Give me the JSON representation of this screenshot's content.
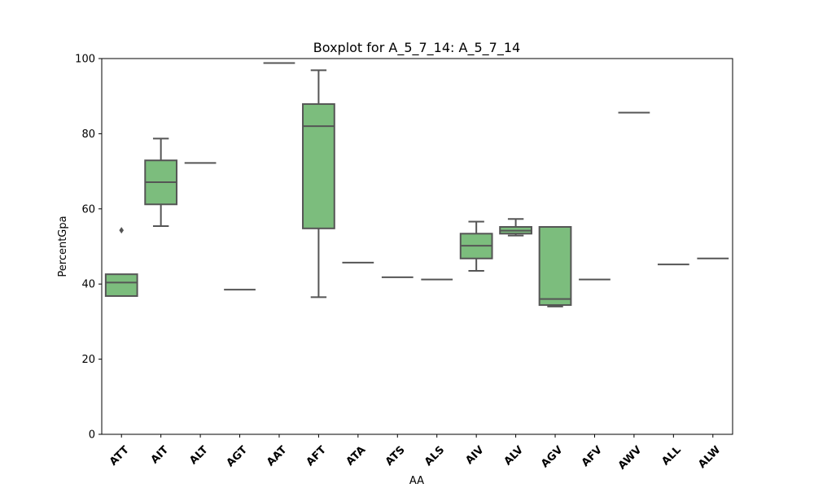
{
  "chart_data": {
    "type": "box",
    "title": "Boxplot for A_5_7_14: A_5_7_14",
    "xlabel": "AA",
    "ylabel": "PercentGpa",
    "ylim": [
      0,
      100
    ],
    "yticks": [
      0,
      20,
      40,
      60,
      80,
      100
    ],
    "grid": false,
    "colors": {
      "box_fill": "#7cbd7d",
      "box_line": "#555555",
      "axis": "#000000"
    },
    "categories": [
      "ATT",
      "AIT",
      "ALT",
      "AGT",
      "AAT",
      "AFT",
      "ATA",
      "ATS",
      "ALS",
      "AIV",
      "ALV",
      "AGV",
      "AFV",
      "AWV",
      "ALL",
      "ALW"
    ],
    "boxes": [
      {
        "category": "ATT",
        "whisker_low": 36.8,
        "q1": 36.8,
        "median": 40.4,
        "q3": 42.6,
        "whisker_high": 42.6,
        "outliers": [
          54.3
        ]
      },
      {
        "category": "AIT",
        "whisker_low": 55.4,
        "q1": 61.2,
        "median": 67.1,
        "q3": 72.9,
        "whisker_high": 78.7,
        "outliers": []
      },
      {
        "category": "ALT",
        "whisker_low": 72.2,
        "q1": 72.2,
        "median": 72.2,
        "q3": 72.2,
        "whisker_high": 72.2,
        "outliers": []
      },
      {
        "category": "AGT",
        "whisker_low": 38.5,
        "q1": 38.5,
        "median": 38.5,
        "q3": 38.5,
        "whisker_high": 38.5,
        "outliers": []
      },
      {
        "category": "AAT",
        "whisker_low": 98.8,
        "q1": 98.8,
        "median": 98.8,
        "q3": 98.8,
        "whisker_high": 98.8,
        "outliers": []
      },
      {
        "category": "AFT",
        "whisker_low": 36.5,
        "q1": 54.8,
        "median": 82.0,
        "q3": 87.9,
        "whisker_high": 96.9,
        "outliers": []
      },
      {
        "category": "ATA",
        "whisker_low": 45.7,
        "q1": 45.7,
        "median": 45.7,
        "q3": 45.7,
        "whisker_high": 45.7,
        "outliers": []
      },
      {
        "category": "ATS",
        "whisker_low": 41.8,
        "q1": 41.8,
        "median": 41.8,
        "q3": 41.8,
        "whisker_high": 41.8,
        "outliers": []
      },
      {
        "category": "ALS",
        "whisker_low": 41.2,
        "q1": 41.2,
        "median": 41.2,
        "q3": 41.2,
        "whisker_high": 41.2,
        "outliers": []
      },
      {
        "category": "AIV",
        "whisker_low": 43.5,
        "q1": 46.8,
        "median": 50.2,
        "q3": 53.4,
        "whisker_high": 56.6,
        "outliers": []
      },
      {
        "category": "ALV",
        "whisker_low": 52.9,
        "q1": 53.4,
        "median": 54.2,
        "q3": 55.2,
        "whisker_high": 57.3,
        "outliers": []
      },
      {
        "category": "AGV",
        "whisker_low": 34.0,
        "q1": 34.4,
        "median": 36.0,
        "q3": 55.2,
        "whisker_high": 55.2,
        "outliers": []
      },
      {
        "category": "AFV",
        "whisker_low": 41.2,
        "q1": 41.2,
        "median": 41.2,
        "q3": 41.2,
        "whisker_high": 41.2,
        "outliers": []
      },
      {
        "category": "AWV",
        "whisker_low": 85.6,
        "q1": 85.6,
        "median": 85.6,
        "q3": 85.6,
        "whisker_high": 85.6,
        "outliers": []
      },
      {
        "category": "ALL",
        "whisker_low": 45.2,
        "q1": 45.2,
        "median": 45.2,
        "q3": 45.2,
        "whisker_high": 45.2,
        "outliers": []
      },
      {
        "category": "ALW",
        "whisker_low": 46.8,
        "q1": 46.8,
        "median": 46.8,
        "q3": 46.8,
        "whisker_high": 46.8,
        "outliers": []
      }
    ]
  }
}
